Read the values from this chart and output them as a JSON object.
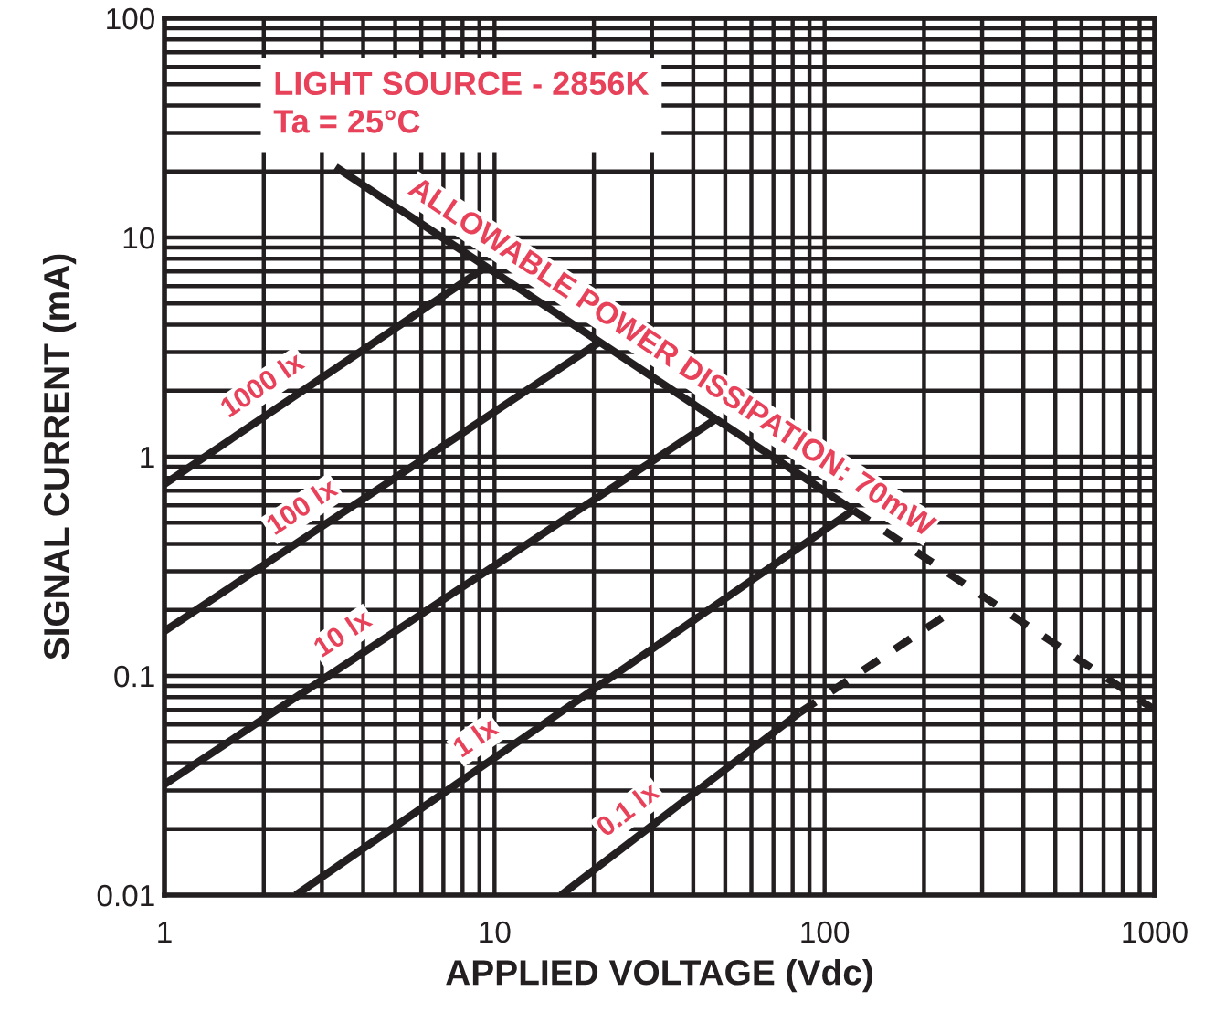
{
  "chart_data": {
    "type": "line",
    "xlabel": "APPLIED VOLTAGE (Vdc)",
    "ylabel": "SIGNAL CURRENT (mA)",
    "log": "xy",
    "xlim": [
      1,
      1000
    ],
    "ylim": [
      0.01,
      100
    ],
    "xticks": [
      1,
      10,
      100,
      1000
    ],
    "yticks": [
      0.01,
      0.1,
      1,
      10,
      100
    ],
    "grid": true,
    "marker": "none",
    "series": [
      {
        "name": "1000 lx",
        "color": "#231f20",
        "x": [
          1,
          9.5
        ],
        "values": [
          0.75,
          7.4
        ]
      },
      {
        "name": "100 lx",
        "color": "#231f20",
        "x": [
          1,
          20.9
        ],
        "values": [
          0.16,
          3.35
        ]
      },
      {
        "name": "10 lx",
        "color": "#231f20",
        "x": [
          1,
          47
        ],
        "values": [
          0.032,
          1.49
        ]
      },
      {
        "name": "1 lx",
        "color": "#231f20",
        "x": [
          2.5,
          122
        ],
        "values": [
          0.01,
          0.57
        ]
      },
      {
        "name": "0.1 lx",
        "color": "#231f20",
        "x": [
          15.9,
          84
        ],
        "values": [
          0.01,
          0.068
        ]
      },
      {
        "color": "#231f20",
        "line_style": "dashed",
        "x": [
          84,
          240
        ],
        "values": [
          0.068,
          0.195
        ]
      },
      {
        "name": "ALLOWABLE POWER DISSIPATION: 70mW",
        "color": "#231f20",
        "x": [
          3.3,
          122
        ],
        "values": [
          21,
          0.57
        ]
      },
      {
        "color": "#231f20",
        "line_style": "dashed",
        "x": [
          122,
          1000
        ],
        "values": [
          0.57,
          0.07
        ]
      }
    ],
    "annotations": [
      "LIGHT SOURCE - 2856K",
      "Ta = 25°C"
    ]
  }
}
